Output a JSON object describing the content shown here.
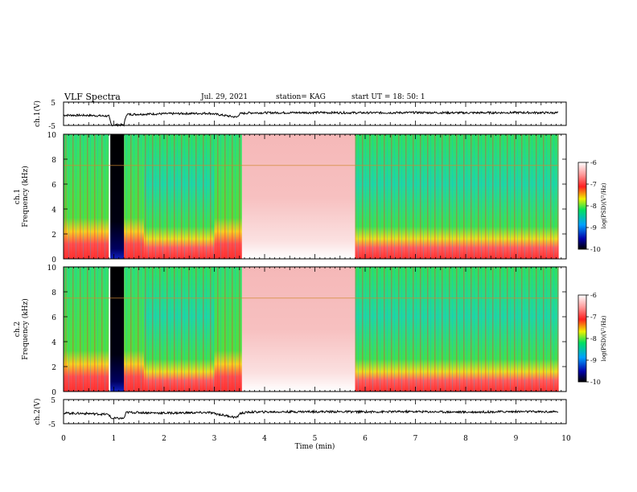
{
  "header": {
    "title": "VLF Spectra",
    "date": "Jul. 29, 2021",
    "station": "station= KAG",
    "start": "start UT = 18: 50: 1"
  },
  "chart_data": [
    {
      "type": "line",
      "panel": "ch1-waveform",
      "ylabel": "ch.1(V)",
      "ylim": [
        -5,
        5
      ],
      "yticks": [
        "5",
        "-5"
      ],
      "x": [
        0,
        0.5,
        0.9,
        0.95,
        1.2,
        1.25,
        2.0,
        2.9,
        3.45,
        3.5,
        3.7,
        5.0,
        6.0,
        7.0,
        8.0,
        9.0,
        9.8
      ],
      "values": [
        -0.6,
        -0.7,
        -1.0,
        -4.8,
        -4.8,
        -0.3,
        0.0,
        0.2,
        -1.5,
        0.0,
        0.4,
        0.5,
        0.4,
        0.5,
        0.4,
        0.5,
        0.4
      ]
    },
    {
      "type": "heatmap",
      "panel": "ch1-spectrogram",
      "ylabel": "ch.1 Frequency (kHz)",
      "ylim": [
        0,
        10
      ],
      "yticks": [
        "0",
        "2",
        "4",
        "6",
        "8",
        "10"
      ],
      "colorbar": {
        "label": "log(PSD)(V²/Hz)",
        "ticks": [
          "-6",
          "-7",
          "-8",
          "-9",
          "-10"
        ],
        "range": [
          -10,
          -6
        ]
      },
      "segments": [
        {
          "x0": 0.0,
          "x1": 0.9,
          "kind": "sferic"
        },
        {
          "x0": 0.93,
          "x1": 1.2,
          "kind": "dark"
        },
        {
          "x0": 1.2,
          "x1": 1.6,
          "kind": "sferic"
        },
        {
          "x0": 1.6,
          "x1": 3.0,
          "kind": "sferic-strong"
        },
        {
          "x0": 3.0,
          "x1": 3.55,
          "kind": "sferic"
        },
        {
          "x0": 3.55,
          "x1": 5.8,
          "kind": "noise"
        },
        {
          "x0": 5.8,
          "x1": 9.85,
          "kind": "sferic-strong"
        }
      ]
    },
    {
      "type": "heatmap",
      "panel": "ch2-spectrogram",
      "ylabel": "ch.2 Frequency (kHz)",
      "ylim": [
        0,
        10
      ],
      "yticks": [
        "0",
        "2",
        "4",
        "6",
        "8",
        "10"
      ],
      "colorbar": {
        "label": "log(PSD)(V²/Hz)",
        "ticks": [
          "-6",
          "-7",
          "-8",
          "-9",
          "-10"
        ],
        "range": [
          -10,
          -6
        ]
      },
      "segments": [
        {
          "x0": 0.0,
          "x1": 0.9,
          "kind": "sferic"
        },
        {
          "x0": 0.93,
          "x1": 1.2,
          "kind": "dark"
        },
        {
          "x0": 1.2,
          "x1": 1.6,
          "kind": "sferic"
        },
        {
          "x0": 1.6,
          "x1": 3.0,
          "kind": "sferic-strong"
        },
        {
          "x0": 3.0,
          "x1": 3.55,
          "kind": "sferic"
        },
        {
          "x0": 3.55,
          "x1": 5.8,
          "kind": "noise"
        },
        {
          "x0": 5.8,
          "x1": 9.85,
          "kind": "sferic-strong"
        }
      ]
    },
    {
      "type": "line",
      "panel": "ch2-waveform",
      "ylabel": "ch.2(V)",
      "ylim": [
        -5,
        5
      ],
      "yticks": [
        "5",
        "-5"
      ],
      "x": [
        0,
        0.5,
        0.9,
        0.95,
        1.2,
        1.25,
        2.0,
        2.9,
        3.45,
        3.5,
        3.7,
        5.0,
        6.0,
        7.0,
        8.0,
        9.0,
        9.8
      ],
      "values": [
        -0.6,
        -0.8,
        -1.2,
        -2.8,
        -2.8,
        -0.3,
        -0.6,
        -0.4,
        -2.5,
        -0.8,
        -0.2,
        0.0,
        -0.1,
        0.0,
        -0.2,
        0.0,
        -0.1
      ]
    }
  ],
  "xaxis": {
    "xlabel": "Time (min)",
    "xlim": [
      0,
      10
    ],
    "ticks": [
      "0",
      "1",
      "2",
      "3",
      "4",
      "5",
      "6",
      "7",
      "8",
      "9",
      "10"
    ]
  }
}
